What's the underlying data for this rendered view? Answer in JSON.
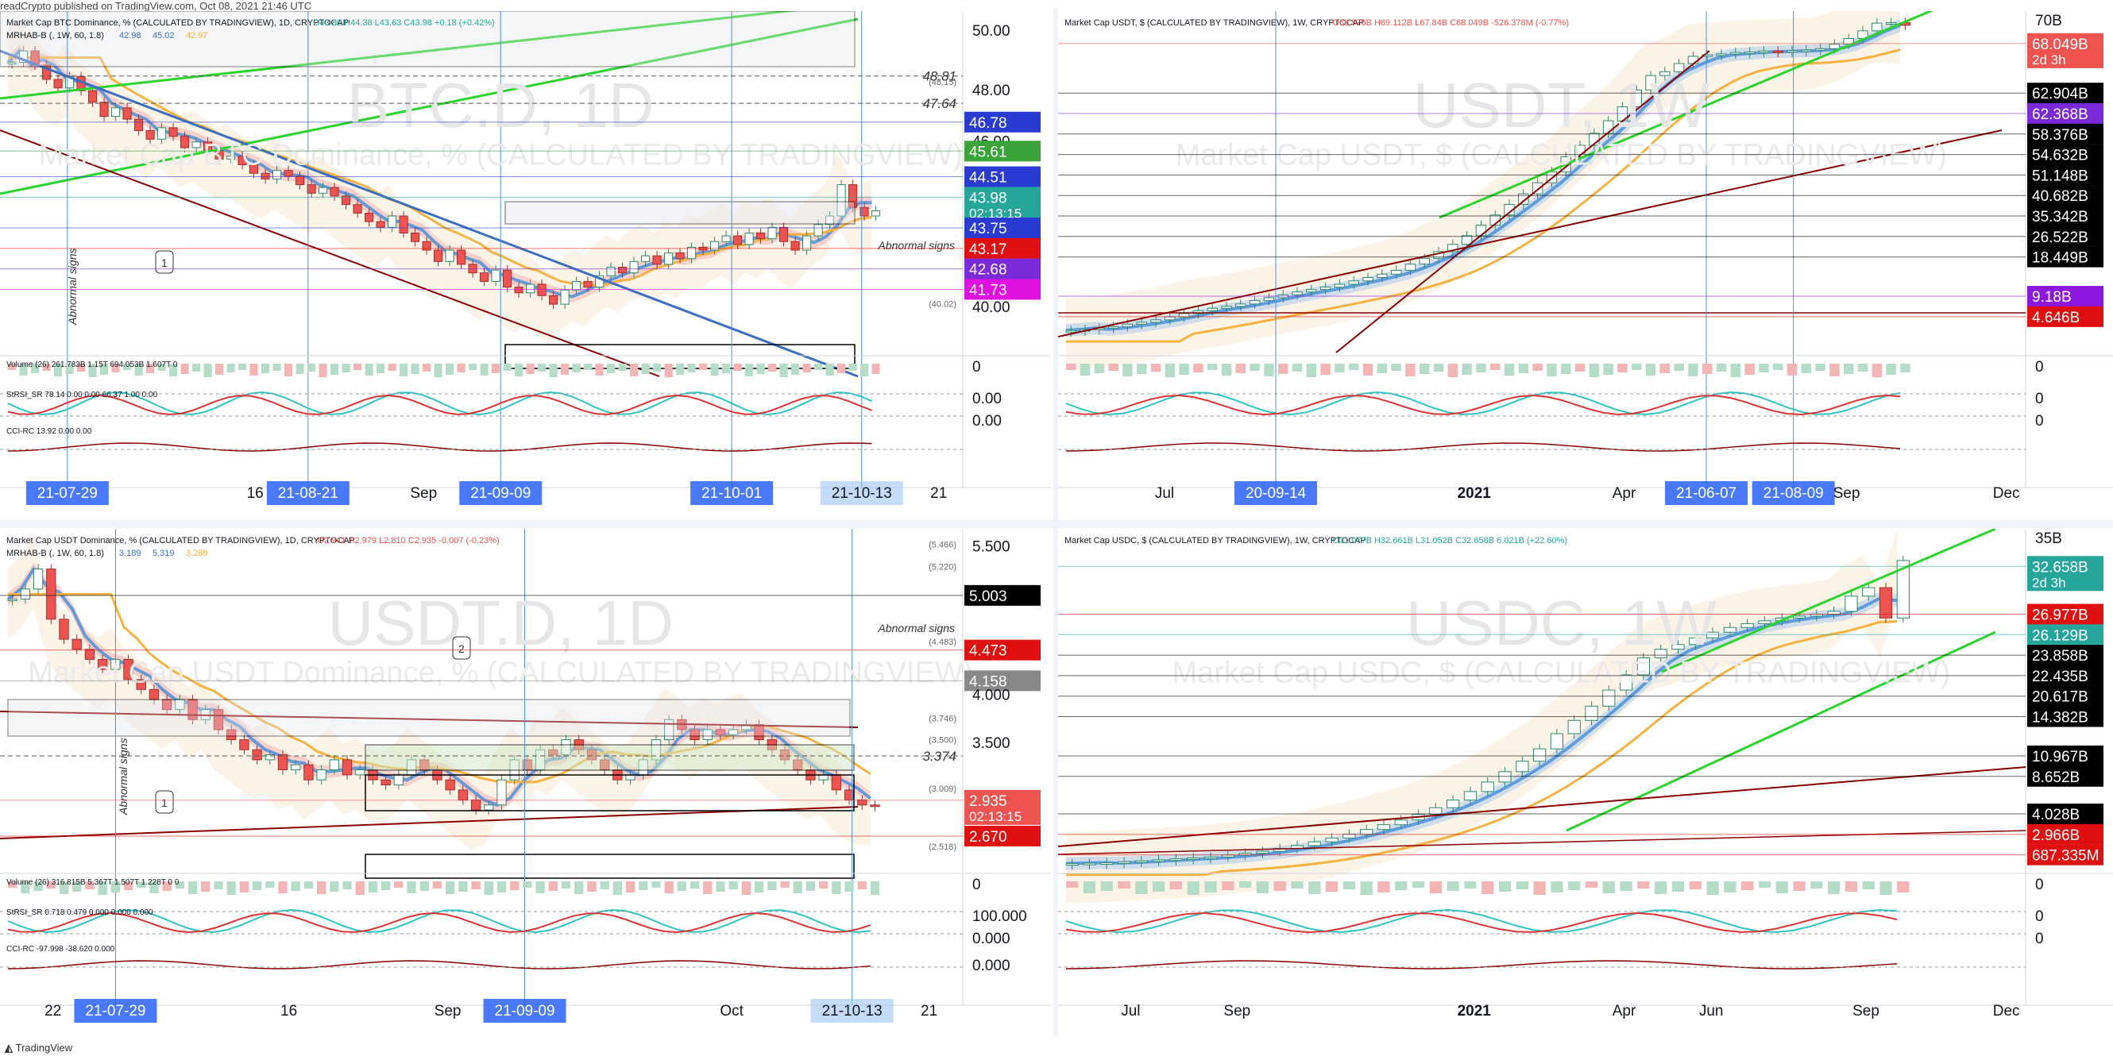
{
  "header": {
    "text": "readCrypto published on TradingView.com, Oct 08, 2021 21:46 UTC"
  },
  "footer": {
    "text": "TradingView"
  },
  "colors": {
    "up": "#26a69a",
    "down": "#ef5350",
    "blue": "#4a90d9",
    "green": "#2bd42b",
    "darkred": "#8b0000",
    "orange": "#f6b13f",
    "pinkband": "#f4b2b2",
    "beige": "#fbeedd"
  },
  "panels": [
    {
      "id": "btc",
      "title": "Market Cap BTC Dominance, % (CALCULATED BY TRADINGVIEW), 1D, CRYPTOCAP",
      "ohlc": "O43.80 H44.38 L43.63 C43.98 +0.18 (+0.42%)",
      "mrhab": "MRHAB-B (, 1W, 60, 1.8)",
      "mrhab_vals": [
        "42.98",
        "45.02",
        "42.97"
      ],
      "watermark": "BTC.D, 1D",
      "watermark_sub": "Market Cap BTC Dominance, % (CALCULATED BY TRADINGVIEW)",
      "ind1": "Volume (26)  261.783B  1.15T  694.053B  1.607T  0",
      "ind2": "StRSI_SR  78.14  0.00  0.00  66.37  1.00  0.00",
      "ind3": "CCI-RC  13.92  0.00  0.00",
      "abnormal": "Abnormal signs",
      "callout": "1",
      "price_labels": [
        {
          "v": "50.00",
          "c": "plain",
          "y": 0.06
        },
        {
          "v": "48.81",
          "c": "dash",
          "y": 0.19
        },
        {
          "v": "48.00",
          "c": "plain",
          "y": 0.235
        },
        {
          "v": "47.64",
          "c": "dash",
          "y": 0.27
        },
        {
          "v": "46.78",
          "c": "#2a3bd1",
          "y": 0.325
        },
        {
          "v": "46.00",
          "c": "plain",
          "y": 0.385
        },
        {
          "v": "45.61",
          "c": "#3aa43a",
          "y": 0.41
        },
        {
          "v": "44.51",
          "c": "#2a3bd1",
          "y": 0.485
        },
        {
          "v": "43.98",
          "c": "#26a69a",
          "y": 0.545,
          "sub": "02:13:15"
        },
        {
          "v": "43.75",
          "c": "#2a3bd1",
          "y": 0.635
        },
        {
          "v": "43.17",
          "c": "#e01010",
          "y": 0.695
        },
        {
          "v": "42.68",
          "c": "#7a2ad9",
          "y": 0.755
        },
        {
          "v": "41.73",
          "c": "#e010e0",
          "y": 0.815
        },
        {
          "v": "40.00",
          "c": "plain",
          "y": 0.87
        },
        {
          "v": "(48.15)",
          "c": "small",
          "y": 0.207
        },
        {
          "v": "(40.02)",
          "c": "small",
          "y": 0.857
        }
      ],
      "osc_labels": [
        "0",
        "0.00",
        "0.00"
      ],
      "time_labels": [
        {
          "v": "21-07-29",
          "hl": true,
          "x": 0.07
        },
        {
          "v": "16",
          "hl": false,
          "x": 0.265
        },
        {
          "v": "21-08-21",
          "hl": true,
          "x": 0.32
        },
        {
          "v": "Sep",
          "hl": false,
          "x": 0.44
        },
        {
          "v": "21-09-09",
          "hl": true,
          "x": 0.52
        },
        {
          "v": "21-10-01",
          "hl": true,
          "x": 0.76
        },
        {
          "v": "21-10-13",
          "hl": true,
          "x": 0.895
        },
        {
          "v": "21",
          "hl": false,
          "x": 0.975
        }
      ],
      "candles": [
        49.2,
        49.6,
        49.1,
        48.6,
        48.3,
        48.7,
        48.2,
        47.8,
        47.3,
        47.6,
        47.2,
        46.8,
        46.5,
        46.9,
        46.6,
        46.2,
        46.4,
        46.1,
        45.8,
        45.9,
        45.6,
        45.3,
        45.1,
        45.4,
        45.2,
        44.9,
        44.6,
        44.8,
        44.5,
        44.2,
        43.9,
        43.6,
        43.4,
        43.8,
        43.2,
        42.9,
        42.6,
        42.2,
        42.6,
        42.1,
        41.8,
        41.5,
        41.9,
        41.3,
        41.1,
        41.4,
        41.0,
        40.7,
        41.2,
        41.5,
        41.3,
        41.7,
        42.0,
        41.8,
        42.2,
        42.4,
        42.1,
        42.5,
        42.3,
        42.7,
        42.6,
        42.9,
        43.1,
        42.8,
        43.2,
        43.0,
        43.4,
        42.9,
        42.6,
        43.1,
        43.5,
        43.8,
        44.9,
        44.1,
        43.8,
        43.98
      ],
      "range": [
        39.0,
        51.0
      ]
    },
    {
      "id": "usdt",
      "title": "Market Cap USDT, $ (CALCULATED BY TRADINGVIEW), 1W, CRYPTOCAP",
      "ohlc": "O68.576B H69.112B L67.84B C68.049B -526.378M (-0.77%)",
      "watermark": "USDT, 1W",
      "watermark_sub": "Market Cap USDT, $ (CALCULATED BY TRADINGVIEW)",
      "price_labels": [
        {
          "v": "70B",
          "c": "plain",
          "y": 0.03
        },
        {
          "v": "68.049B",
          "c": "#ef5350",
          "y": 0.095,
          "sub": "2d 3h"
        },
        {
          "v": "62.904B",
          "c": "#000000",
          "y": 0.24
        },
        {
          "v": "62.368B",
          "c": "#7a2ad9",
          "y": 0.3
        },
        {
          "v": "58.376B",
          "c": "#000000",
          "y": 0.36
        },
        {
          "v": "54.632B",
          "c": "#000000",
          "y": 0.42
        },
        {
          "v": "51.148B",
          "c": "#000000",
          "y": 0.48
        },
        {
          "v": "40.682B",
          "c": "#000000",
          "y": 0.54
        },
        {
          "v": "35.342B",
          "c": "#000000",
          "y": 0.6
        },
        {
          "v": "26.522B",
          "c": "#000000",
          "y": 0.66
        },
        {
          "v": "18.449B",
          "c": "#000000",
          "y": 0.72
        },
        {
          "v": "9.18B",
          "c": "#8c18e0",
          "y": 0.835
        },
        {
          "v": "4.646B",
          "c": "#e01010",
          "y": 0.895
        }
      ],
      "osc_labels": [
        "0",
        "0",
        "0"
      ],
      "time_labels": [
        {
          "v": "Jul",
          "hl": false,
          "x": 0.11
        },
        {
          "v": "20-09-14",
          "hl": true,
          "x": 0.225
        },
        {
          "v": "2021",
          "hl": false,
          "x": 0.43
        },
        {
          "v": "Apr",
          "hl": false,
          "x": 0.585
        },
        {
          "v": "21-06-07",
          "hl": true,
          "x": 0.67
        },
        {
          "v": "21-08-09",
          "hl": true,
          "x": 0.76
        },
        {
          "v": "Sep",
          "hl": false,
          "x": 0.815
        },
        {
          "v": "Dec",
          "hl": false,
          "x": 0.98
        }
      ],
      "candles": [
        4.6,
        4.8,
        5.1,
        5.4,
        5.9,
        6.3,
        6.8,
        7.4,
        8.1,
        8.7,
        9.2,
        9.6,
        10.1,
        10.8,
        11.4,
        12.0,
        12.6,
        13.1,
        13.6,
        14.2,
        14.9,
        15.6,
        16.3,
        17.1,
        18.4,
        19.6,
        21.0,
        22.5,
        24.3,
        26.5,
        28.6,
        30.8,
        33.0,
        35.3,
        37.6,
        40.7,
        43.1,
        45.6,
        48.2,
        51.1,
        54.6,
        57.6,
        58.4,
        60.1,
        61.6,
        61.9,
        62.1,
        62.4,
        62.5,
        62.7,
        62.6,
        62.8,
        62.9,
        63.2,
        64.1,
        65.3,
        66.9,
        68.5,
        68.6,
        68.049
      ],
      "range": [
        0,
        71
      ]
    },
    {
      "id": "usdtd",
      "title": "Market Cap USDT Dominance, % (CALCULATED BY TRADINGVIEW), 1D, CRYPTOCAP",
      "ohlc": "O2.941 H2.979 L2.810 C2.935 -0.007 (-0.23%)",
      "mrhab": "MRHAB-B (, 1W, 60, 1.8)",
      "mrhab_vals": [
        "3.189",
        "5.319",
        "3.289"
      ],
      "watermark": "USDT.D, 1D",
      "watermark_sub": "Market Cap USDT Dominance, % (CALCULATED BY TRADINGVIEW)",
      "ind1": "Volume (26)  316.815B  5.367T  1.507T  1.228T  0  0",
      "ind2": "StRSI_SR  0.718  0.479  0.000  0.000  0.000",
      "ind3": "CCI-RC  -97.998  -38.620  0.000",
      "abnormal": "Abnormal signs",
      "callout1": "1",
      "callout2": "2",
      "price_labels": [
        {
          "v": "5.500",
          "c": "plain",
          "y": 0.055
        },
        {
          "v": "(5.466)",
          "c": "small",
          "y": 0.045
        },
        {
          "v": "(5.220)",
          "c": "small",
          "y": 0.11
        },
        {
          "v": "5.003",
          "c": "#000000",
          "y": 0.195
        },
        {
          "v": "(4.483)",
          "c": "small",
          "y": 0.33
        },
        {
          "v": "4.473",
          "c": "#e01010",
          "y": 0.355
        },
        {
          "v": "4.158",
          "c": "#888888",
          "y": 0.445
        },
        {
          "v": "4.000",
          "c": "plain",
          "y": 0.49
        },
        {
          "v": "(3.746)",
          "c": "small",
          "y": 0.555
        },
        {
          "v": "3.500",
          "c": "plain",
          "y": 0.63
        },
        {
          "v": "(3.500)",
          "c": "small",
          "y": 0.618
        },
        {
          "v": "3.374",
          "c": "dash",
          "y": 0.665
        },
        {
          "v": "(3.009)",
          "c": "small",
          "y": 0.76
        },
        {
          "v": "2.935",
          "c": "#ef5350",
          "y": 0.795,
          "sub": "02:13:15"
        },
        {
          "v": "2.670",
          "c": "#e01010",
          "y": 0.9
        },
        {
          "v": "(2.518)",
          "c": "small",
          "y": 0.93
        }
      ],
      "osc_labels": [
        "0",
        "100.000",
        "0.000",
        "0.000"
      ],
      "time_labels": [
        {
          "v": "22",
          "hl": false,
          "x": 0.055
        },
        {
          "v": "21-07-29",
          "hl": true,
          "x": 0.12
        },
        {
          "v": "16",
          "hl": false,
          "x": 0.3
        },
        {
          "v": "Sep",
          "hl": false,
          "x": 0.465
        },
        {
          "v": "21-09-09",
          "hl": true,
          "x": 0.545
        },
        {
          "v": "Oct",
          "hl": false,
          "x": 0.76
        },
        {
          "v": "21-10-13",
          "hl": true,
          "x": 0.885
        },
        {
          "v": "21",
          "hl": false,
          "x": 0.965
        }
      ],
      "candles": [
        5.0,
        5.1,
        5.3,
        4.8,
        4.6,
        4.5,
        4.4,
        4.3,
        4.4,
        4.2,
        4.1,
        4.0,
        3.9,
        4.0,
        3.8,
        3.9,
        3.7,
        3.6,
        3.5,
        3.4,
        3.45,
        3.3,
        3.35,
        3.2,
        3.3,
        3.4,
        3.25,
        3.3,
        3.2,
        3.15,
        3.25,
        3.4,
        3.3,
        3.2,
        3.1,
        3.0,
        2.9,
        2.95,
        3.2,
        3.4,
        3.3,
        3.5,
        3.45,
        3.6,
        3.5,
        3.4,
        3.3,
        3.2,
        3.25,
        3.4,
        3.6,
        3.8,
        3.7,
        3.6,
        3.7,
        3.65,
        3.7,
        3.75,
        3.6,
        3.5,
        3.4,
        3.3,
        3.2,
        3.25,
        3.1,
        3.0,
        2.95,
        2.935
      ],
      "range": [
        2.3,
        5.7
      ]
    },
    {
      "id": "usdc",
      "title": "Market Cap USDC, $ (CALCULATED BY TRADINGVIEW), 1W, CRYPTOCAP",
      "ohlc": "O31.077B H32.661B L31.052B C32.658B 6.021B (+22.60%)",
      "watermark": "USDC, 1W",
      "watermark_sub": "Market Cap USDC, $ (CALCULATED BY TRADINGVIEW)",
      "price_labels": [
        {
          "v": "35B",
          "c": "plain",
          "y": 0.03
        },
        {
          "v": "32.658B",
          "c": "#26a69a",
          "y": 0.11,
          "sub": "2d 3h"
        },
        {
          "v": "26.977B",
          "c": "#e01010",
          "y": 0.25
        },
        {
          "v": "26.129B",
          "c": "#26a69a",
          "y": 0.31
        },
        {
          "v": "23.858B",
          "c": "#000000",
          "y": 0.37
        },
        {
          "v": "22.435B",
          "c": "#000000",
          "y": 0.43
        },
        {
          "v": "20.617B",
          "c": "#000000",
          "y": 0.49
        },
        {
          "v": "14.382B",
          "c": "#000000",
          "y": 0.55
        },
        {
          "v": "10.967B",
          "c": "#000000",
          "y": 0.665
        },
        {
          "v": "8.652B",
          "c": "#000000",
          "y": 0.725
        },
        {
          "v": "4.028B",
          "c": "#000000",
          "y": 0.835
        },
        {
          "v": "2.966B",
          "c": "#e01010",
          "y": 0.895
        },
        {
          "v": "687.335M",
          "c": "#e01010",
          "y": 0.955
        }
      ],
      "osc_labels": [
        "0",
        "0",
        "0"
      ],
      "time_labels": [
        {
          "v": "Jul",
          "hl": false,
          "x": 0.075
        },
        {
          "v": "Sep",
          "hl": false,
          "x": 0.185
        },
        {
          "v": "2021",
          "hl": false,
          "x": 0.43
        },
        {
          "v": "Apr",
          "hl": false,
          "x": 0.585
        },
        {
          "v": "Jun",
          "hl": false,
          "x": 0.675
        },
        {
          "v": "Sep",
          "hl": false,
          "x": 0.835
        },
        {
          "v": "Dec",
          "hl": false,
          "x": 0.98
        }
      ],
      "candles": [
        0.7,
        0.75,
        0.8,
        0.9,
        1.0,
        1.1,
        1.2,
        1.3,
        1.4,
        1.6,
        1.8,
        2.0,
        2.3,
        2.6,
        3.0,
        3.4,
        3.8,
        4.3,
        4.8,
        5.3,
        5.9,
        6.6,
        7.4,
        8.3,
        9.3,
        10.4,
        11.5,
        12.8,
        14.4,
        15.8,
        17.3,
        19.0,
        20.6,
        22.4,
        23.3,
        23.8,
        24.5,
        25.1,
        25.6,
        26.0,
        26.3,
        26.6,
        26.8,
        27.0,
        27.3,
        28.9,
        29.8,
        26.6,
        32.658
      ],
      "range": [
        0,
        36
      ]
    }
  ]
}
